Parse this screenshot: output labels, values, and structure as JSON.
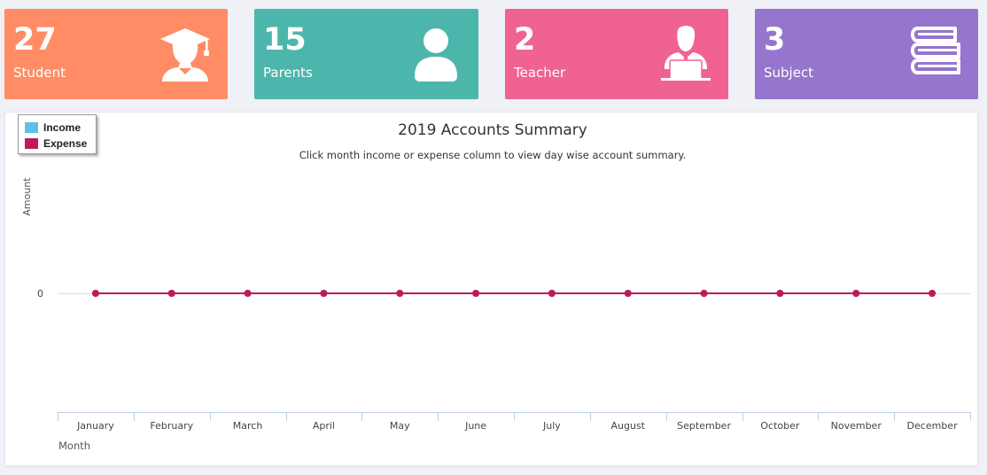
{
  "cards": [
    {
      "count": "27",
      "label": "Student",
      "color": "#ff8c64",
      "icon": "graduate-icon"
    },
    {
      "count": "15",
      "label": "Parents",
      "color": "#4db6ac",
      "icon": "user-icon"
    },
    {
      "count": "2",
      "label": "Teacher",
      "color": "#f06292",
      "icon": "teacher-icon"
    },
    {
      "count": "3",
      "label": "Subject",
      "color": "#9575cd",
      "icon": "books-icon"
    }
  ],
  "chart_data": {
    "type": "line",
    "title": "2019 Accounts Summary",
    "subtitle": "Click month income or expense column to view day wise account summary.",
    "xlabel": "Month",
    "ylabel": "Amount",
    "categories": [
      "January",
      "February",
      "March",
      "April",
      "May",
      "June",
      "July",
      "August",
      "September",
      "October",
      "November",
      "December"
    ],
    "yticks": [
      "0"
    ],
    "series": [
      {
        "name": "Income",
        "color": "#5bc0e8",
        "values": [
          0,
          0,
          0,
          0,
          0,
          0,
          0,
          0,
          0,
          0,
          0,
          0
        ]
      },
      {
        "name": "Expense",
        "color": "#c2185b",
        "values": [
          0,
          0,
          0,
          0,
          0,
          0,
          0,
          0,
          0,
          0,
          0,
          0
        ]
      }
    ],
    "legend_position": "top-left",
    "grid": true
  }
}
